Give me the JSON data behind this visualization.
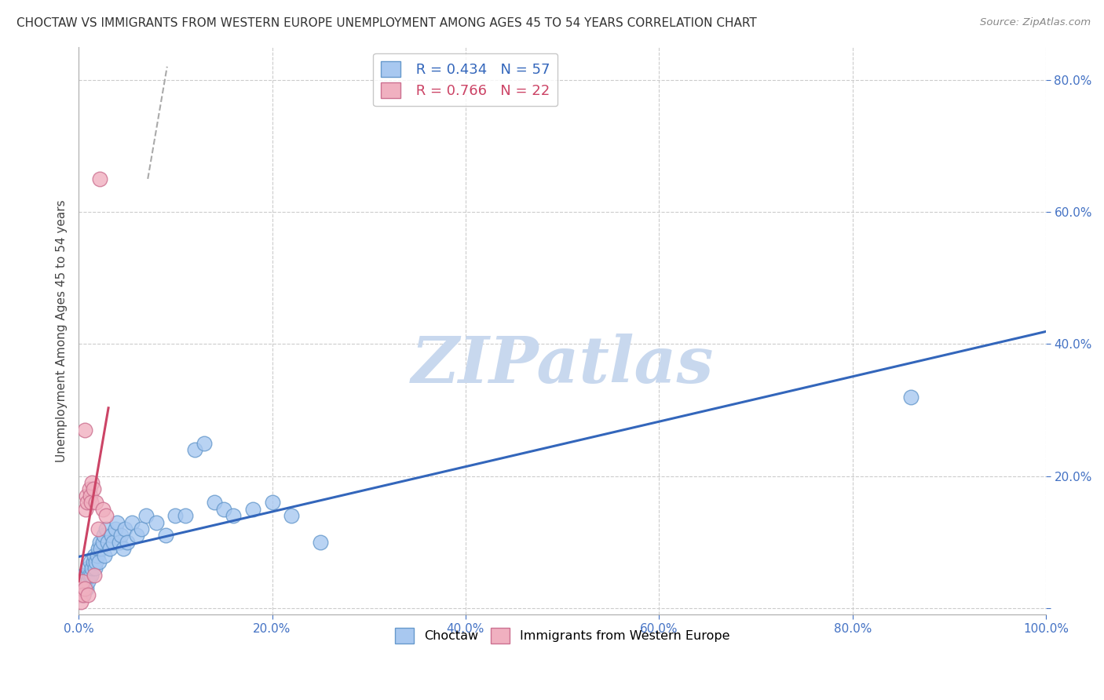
{
  "title": "CHOCTAW VS IMMIGRANTS FROM WESTERN EUROPE UNEMPLOYMENT AMONG AGES 45 TO 54 YEARS CORRELATION CHART",
  "source": "Source: ZipAtlas.com",
  "ylabel": "Unemployment Among Ages 45 to 54 years",
  "xlim": [
    0,
    1.0
  ],
  "ylim": [
    -0.01,
    0.85
  ],
  "xticks": [
    0.0,
    0.2,
    0.4,
    0.6,
    0.8,
    1.0
  ],
  "xtick_labels": [
    "0.0%",
    "20.0%",
    "40.0%",
    "60.0%",
    "80.0%",
    "100.0%"
  ],
  "yticks": [
    0.0,
    0.2,
    0.4,
    0.6,
    0.8
  ],
  "ytick_labels": [
    "",
    "20.0%",
    "40.0%",
    "60.0%",
    "80.0%"
  ],
  "choctaw_color": "#a8c8f0",
  "choctaw_edge": "#6699cc",
  "immigrant_color": "#f0b0c0",
  "immigrant_edge": "#cc7090",
  "trend_choctaw_color": "#3366bb",
  "trend_immigrant_color": "#cc4466",
  "legend_r1": "R = 0.434",
  "legend_n1": "N = 57",
  "legend_r2": "R = 0.766",
  "legend_n2": "N = 22",
  "watermark": "ZIPatlas",
  "watermark_color": "#c8d8ee",
  "choctaw_label": "Choctaw",
  "immigrant_label": "Immigrants from Western Europe",
  "choctaw_x": [
    0.002,
    0.003,
    0.004,
    0.005,
    0.005,
    0.006,
    0.007,
    0.008,
    0.009,
    0.01,
    0.01,
    0.011,
    0.012,
    0.013,
    0.014,
    0.015,
    0.016,
    0.017,
    0.018,
    0.019,
    0.02,
    0.021,
    0.022,
    0.023,
    0.025,
    0.026,
    0.027,
    0.028,
    0.03,
    0.032,
    0.034,
    0.036,
    0.038,
    0.04,
    0.042,
    0.044,
    0.046,
    0.048,
    0.05,
    0.055,
    0.06,
    0.065,
    0.07,
    0.08,
    0.09,
    0.1,
    0.11,
    0.12,
    0.13,
    0.14,
    0.15,
    0.16,
    0.18,
    0.2,
    0.22,
    0.25,
    0.86
  ],
  "choctaw_y": [
    0.03,
    0.02,
    0.04,
    0.02,
    0.05,
    0.03,
    0.04,
    0.03,
    0.05,
    0.04,
    0.06,
    0.05,
    0.07,
    0.05,
    0.06,
    0.07,
    0.08,
    0.06,
    0.07,
    0.08,
    0.09,
    0.07,
    0.1,
    0.09,
    0.1,
    0.11,
    0.08,
    0.12,
    0.1,
    0.09,
    0.11,
    0.1,
    0.12,
    0.13,
    0.1,
    0.11,
    0.09,
    0.12,
    0.1,
    0.13,
    0.11,
    0.12,
    0.14,
    0.13,
    0.11,
    0.14,
    0.14,
    0.24,
    0.25,
    0.16,
    0.15,
    0.14,
    0.15,
    0.16,
    0.14,
    0.1,
    0.32
  ],
  "immigrant_x": [
    0.001,
    0.002,
    0.003,
    0.004,
    0.005,
    0.006,
    0.006,
    0.007,
    0.008,
    0.009,
    0.01,
    0.011,
    0.012,
    0.013,
    0.014,
    0.015,
    0.016,
    0.018,
    0.02,
    0.022,
    0.025,
    0.028
  ],
  "immigrant_y": [
    0.02,
    0.01,
    0.03,
    0.04,
    0.02,
    0.27,
    0.03,
    0.15,
    0.17,
    0.16,
    0.02,
    0.18,
    0.17,
    0.16,
    0.19,
    0.18,
    0.05,
    0.16,
    0.12,
    0.65,
    0.15,
    0.14
  ]
}
